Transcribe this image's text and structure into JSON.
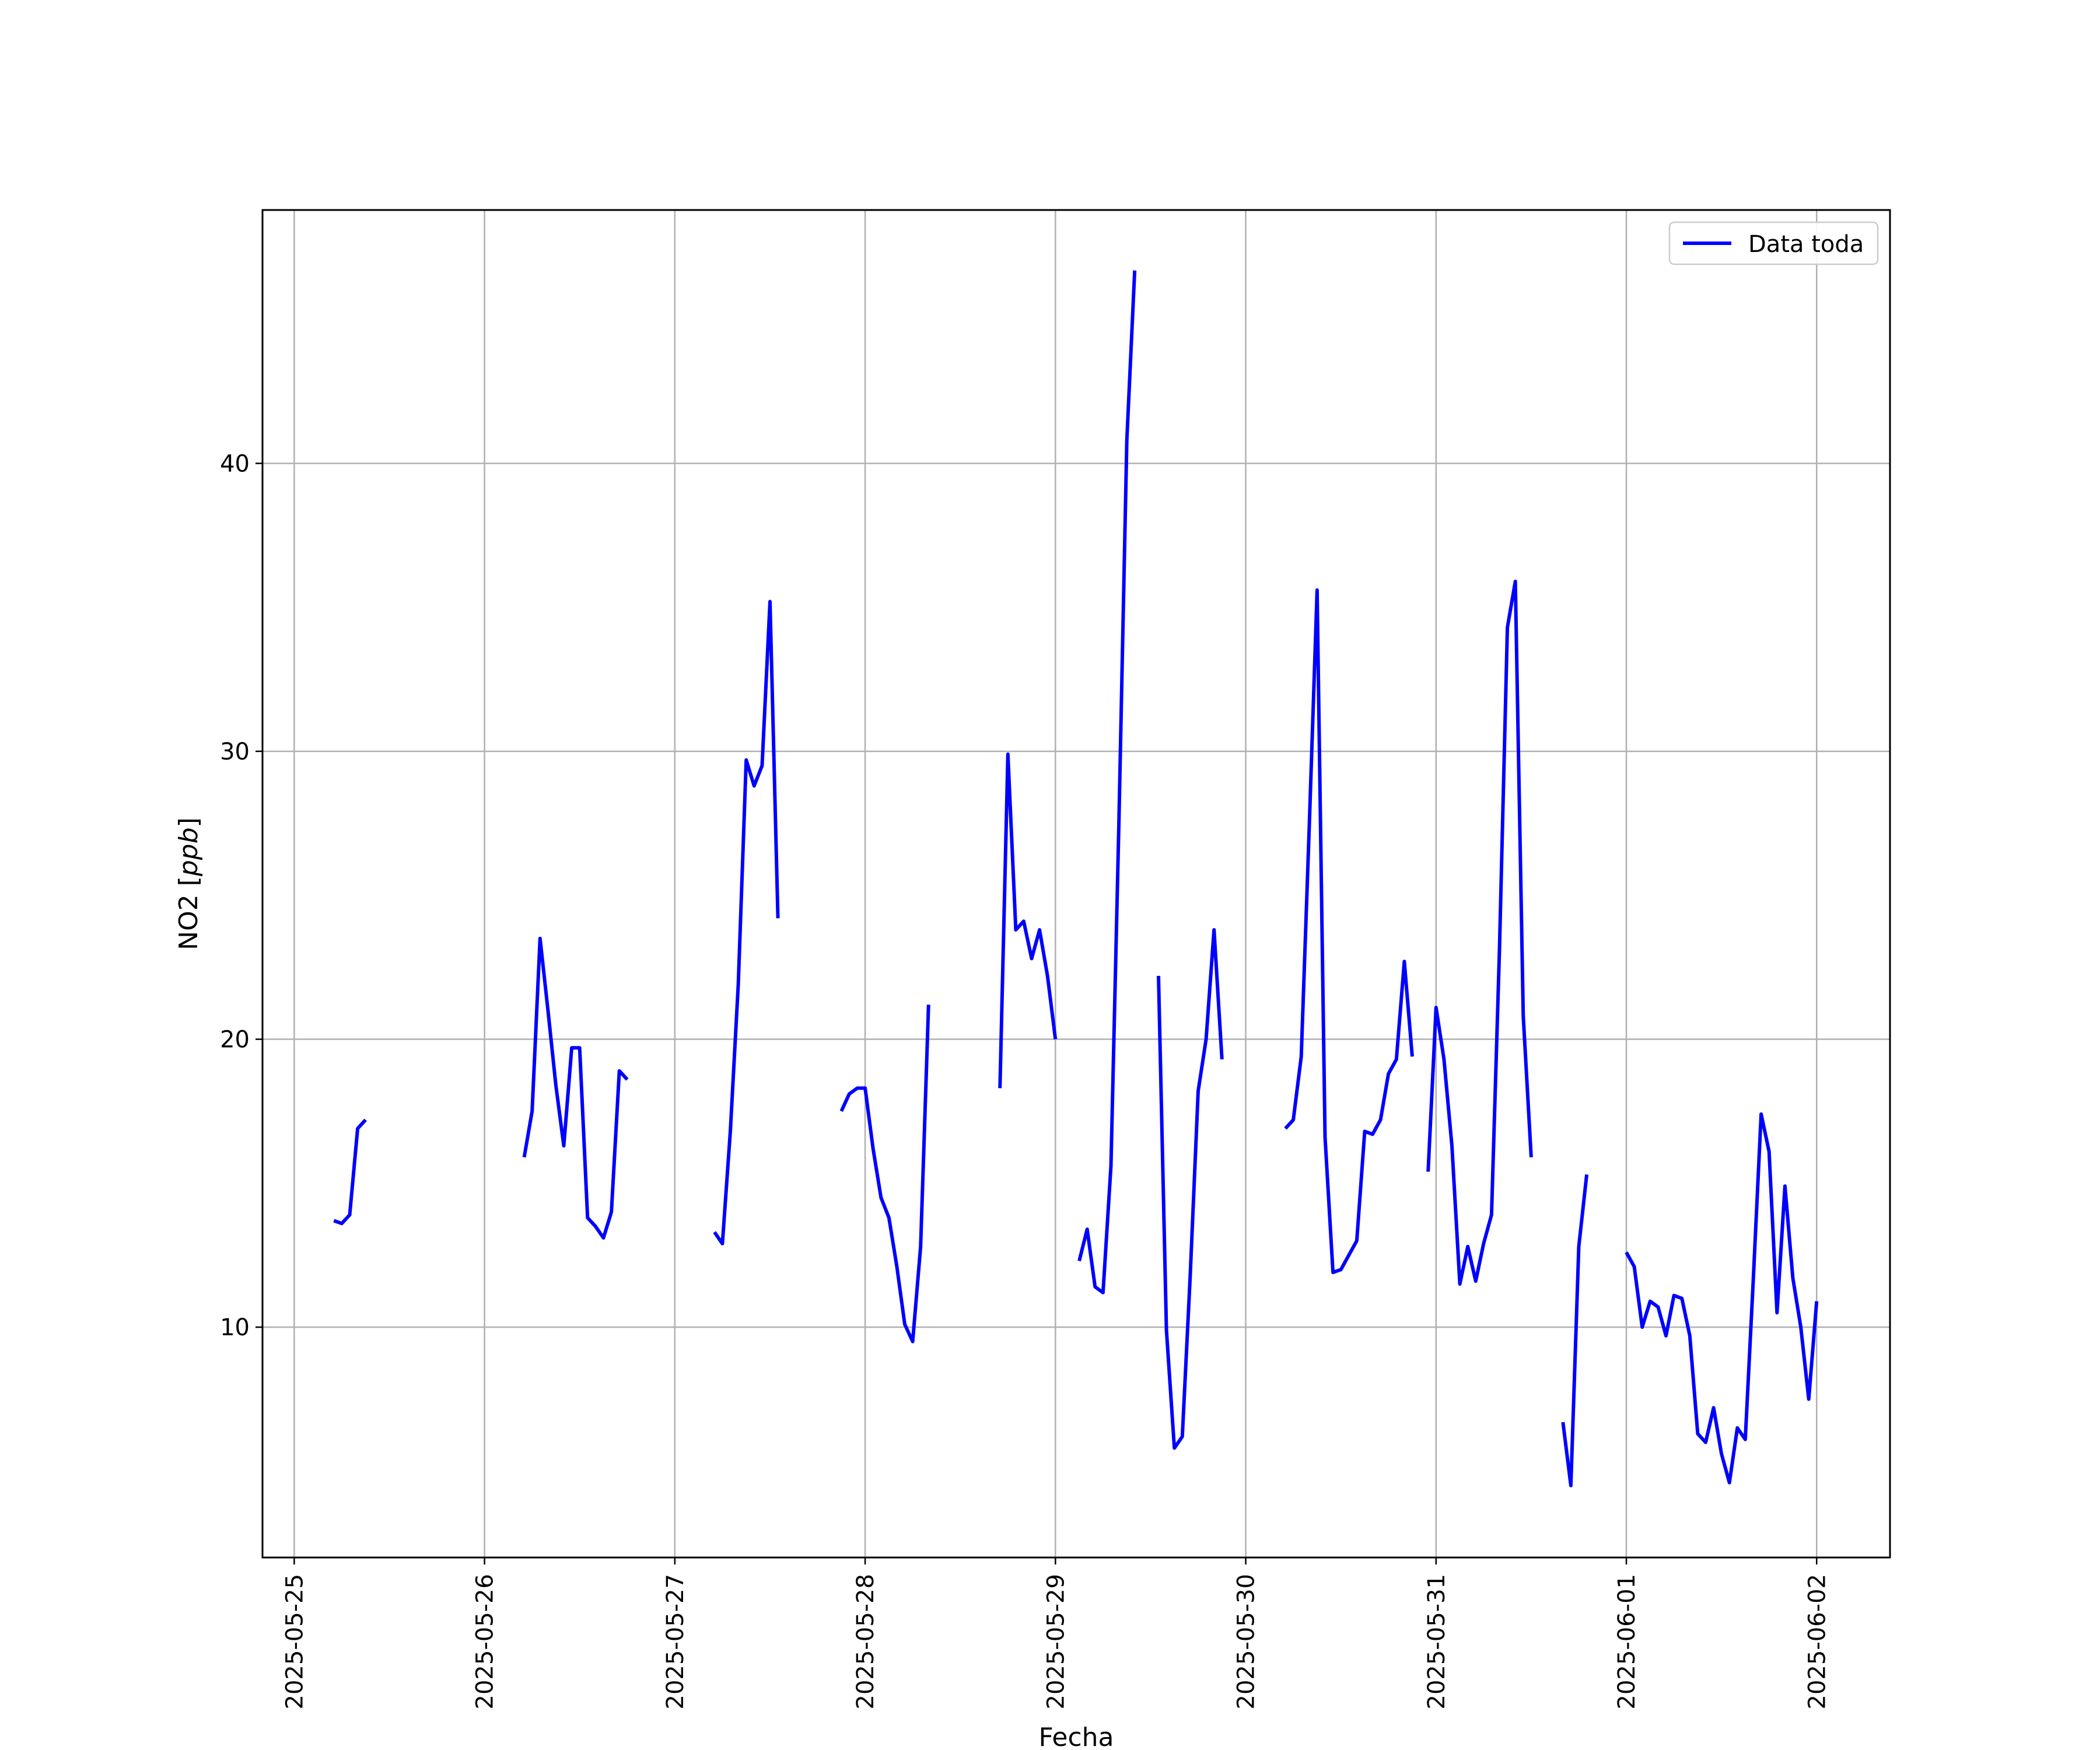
{
  "chart_data": {
    "type": "line",
    "title": "",
    "xlabel": "Fecha",
    "ylabel": "NO2 [",
    "ylabel_unit": "ppb",
    "ylabel_close": "]",
    "x_ticks": [
      "2025-05-25",
      "2025-05-26",
      "2025-05-27",
      "2025-05-28",
      "2025-05-29",
      "2025-05-30",
      "2025-05-31",
      "2025-06-01",
      "2025-06-02"
    ],
    "y_ticks": [
      10,
      20,
      30,
      40
    ],
    "xlim": [
      "2025-05-24 20:00",
      "2025-06-02 09:15"
    ],
    "ylim": [
      2.0,
      48.8
    ],
    "grid": true,
    "legend_position": "upper right",
    "colors": {
      "line": "#0000ff",
      "grid": "#b0b0b0",
      "axis": "#000000"
    },
    "series": [
      {
        "name": "Data toda",
        "segments": [
          [
            [
              "2025-05-25 05:00",
              13.7
            ],
            [
              "2025-05-25 06:00",
              13.6
            ],
            [
              "2025-05-25 07:00",
              13.9
            ],
            [
              "2025-05-25 08:00",
              16.9
            ],
            [
              "2025-05-25 09:00",
              17.2
            ]
          ],
          [
            [
              "2025-05-26 05:00",
              15.9
            ],
            [
              "2025-05-26 06:00",
              17.5
            ],
            [
              "2025-05-26 07:00",
              23.5
            ],
            [
              "2025-05-26 08:00",
              21.0
            ],
            [
              "2025-05-26 09:00",
              18.4
            ],
            [
              "2025-05-26 10:00",
              16.3
            ],
            [
              "2025-05-26 11:00",
              19.7
            ],
            [
              "2025-05-26 12:00",
              19.7
            ],
            [
              "2025-05-26 13:00",
              13.8
            ],
            [
              "2025-05-26 14:00",
              13.5
            ],
            [
              "2025-05-26 15:00",
              13.1
            ],
            [
              "2025-05-26 16:00",
              14.0
            ],
            [
              "2025-05-26 17:00",
              18.9
            ],
            [
              "2025-05-26 18:00",
              18.6
            ]
          ],
          [
            [
              "2025-05-27 05:00",
              13.3
            ],
            [
              "2025-05-27 06:00",
              12.9
            ],
            [
              "2025-05-27 07:00",
              16.8
            ],
            [
              "2025-05-27 08:00",
              21.9
            ],
            [
              "2025-05-27 09:00",
              29.7
            ],
            [
              "2025-05-27 10:00",
              28.8
            ],
            [
              "2025-05-27 11:00",
              29.5
            ],
            [
              "2025-05-27 12:00",
              35.2
            ],
            [
              "2025-05-27 13:00",
              24.2
            ]
          ],
          [
            [
              "2025-05-27 21:00",
              17.5
            ],
            [
              "2025-05-27 22:00",
              18.1
            ],
            [
              "2025-05-27 23:00",
              18.3
            ],
            [
              "2025-05-28 00:00",
              18.3
            ],
            [
              "2025-05-28 01:00",
              16.2
            ],
            [
              "2025-05-28 02:00",
              14.5
            ],
            [
              "2025-05-28 03:00",
              13.8
            ],
            [
              "2025-05-28 04:00",
              12.1
            ],
            [
              "2025-05-28 05:00",
              10.1
            ],
            [
              "2025-05-28 06:00",
              9.5
            ],
            [
              "2025-05-28 07:00",
              12.8
            ],
            [
              "2025-05-28 08:00",
              21.2
            ]
          ],
          [
            [
              "2025-05-28 17:00",
              18.3
            ],
            [
              "2025-05-28 18:00",
              29.9
            ],
            [
              "2025-05-28 19:00",
              23.8
            ],
            [
              "2025-05-28 20:00",
              24.1
            ],
            [
              "2025-05-28 21:00",
              22.8
            ],
            [
              "2025-05-28 22:00",
              23.8
            ],
            [
              "2025-05-28 23:00",
              22.2
            ],
            [
              "2025-05-29 00:00",
              20.0
            ]
          ],
          [
            [
              "2025-05-29 03:00",
              12.3
            ],
            [
              "2025-05-29 04:00",
              13.4
            ],
            [
              "2025-05-29 05:00",
              11.4
            ],
            [
              "2025-05-29 06:00",
              11.2
            ],
            [
              "2025-05-29 07:00",
              15.6
            ],
            [
              "2025-05-29 08:00",
              27.5
            ],
            [
              "2025-05-29 09:00",
              40.8
            ],
            [
              "2025-05-29 10:00",
              46.7
            ]
          ],
          [
            [
              "2025-05-29 13:00",
              22.2
            ],
            [
              "2025-05-29 14:00",
              9.9
            ],
            [
              "2025-05-29 15:00",
              5.8
            ],
            [
              "2025-05-29 16:00",
              6.2
            ],
            [
              "2025-05-29 17:00",
              11.8
            ],
            [
              "2025-05-29 18:00",
              18.2
            ],
            [
              "2025-05-29 19:00",
              20.0
            ],
            [
              "2025-05-29 20:00",
              23.8
            ],
            [
              "2025-05-29 21:00",
              19.3
            ]
          ],
          [
            [
              "2025-05-30 05:00",
              16.9
            ],
            [
              "2025-05-30 06:00",
              17.2
            ],
            [
              "2025-05-30 07:00",
              19.4
            ],
            [
              "2025-05-30 08:00",
              27.3
            ],
            [
              "2025-05-30 09:00",
              35.6
            ],
            [
              "2025-05-30 10:00",
              16.6
            ],
            [
              "2025-05-30 11:00",
              11.9
            ],
            [
              "2025-05-30 12:00",
              12.0
            ],
            [
              "2025-05-30 13:00",
              12.5
            ],
            [
              "2025-05-30 14:00",
              13.0
            ],
            [
              "2025-05-30 15:00",
              16.8
            ],
            [
              "2025-05-30 16:00",
              16.7
            ],
            [
              "2025-05-30 17:00",
              17.2
            ],
            [
              "2025-05-30 18:00",
              18.8
            ],
            [
              "2025-05-30 19:00",
              19.3
            ],
            [
              "2025-05-30 20:00",
              22.7
            ],
            [
              "2025-05-30 21:00",
              19.4
            ]
          ],
          [
            [
              "2025-05-30 23:00",
              15.4
            ],
            [
              "2025-05-31 00:00",
              21.1
            ],
            [
              "2025-05-31 01:00",
              19.3
            ],
            [
              "2025-05-31 02:00",
              16.3
            ],
            [
              "2025-05-31 03:00",
              11.5
            ],
            [
              "2025-05-31 04:00",
              12.8
            ],
            [
              "2025-05-31 05:00",
              11.6
            ],
            [
              "2025-05-31 06:00",
              12.9
            ],
            [
              "2025-05-31 07:00",
              13.9
            ],
            [
              "2025-05-31 08:00",
              23.1
            ],
            [
              "2025-05-31 09:00",
              34.3
            ],
            [
              "2025-05-31 10:00",
              35.9
            ],
            [
              "2025-05-31 11:00",
              20.8
            ],
            [
              "2025-05-31 12:00",
              15.9
            ]
          ],
          [
            [
              "2025-05-31 16:00",
              6.7
            ],
            [
              "2025-05-31 17:00",
              4.5
            ],
            [
              "2025-05-31 18:00",
              12.8
            ],
            [
              "2025-05-31 19:00",
              15.3
            ]
          ],
          [
            [
              "2025-06-01 00:00",
              12.6
            ],
            [
              "2025-06-01 01:00",
              12.1
            ],
            [
              "2025-06-01 02:00",
              10.0
            ],
            [
              "2025-06-01 03:00",
              10.9
            ],
            [
              "2025-06-01 04:00",
              10.7
            ],
            [
              "2025-06-01 05:00",
              9.7
            ],
            [
              "2025-06-01 06:00",
              11.1
            ],
            [
              "2025-06-01 07:00",
              11.0
            ],
            [
              "2025-06-01 08:00",
              9.7
            ],
            [
              "2025-06-01 09:00",
              6.3
            ],
            [
              "2025-06-01 10:00",
              6.0
            ],
            [
              "2025-06-01 11:00",
              7.2
            ],
            [
              "2025-06-01 12:00",
              5.6
            ],
            [
              "2025-06-01 13:00",
              4.6
            ],
            [
              "2025-06-01 14:00",
              6.5
            ],
            [
              "2025-06-01 15:00",
              6.1
            ],
            [
              "2025-06-01 16:00",
              11.6
            ],
            [
              "2025-06-01 17:00",
              17.4
            ],
            [
              "2025-06-01 18:00",
              16.1
            ],
            [
              "2025-06-01 19:00",
              10.5
            ],
            [
              "2025-06-01 20:00",
              14.9
            ],
            [
              "2025-06-01 21:00",
              11.7
            ],
            [
              "2025-06-01 22:00",
              10.0
            ],
            [
              "2025-06-01 23:00",
              7.5
            ],
            [
              "2025-06-02 00:00",
              10.9
            ]
          ]
        ]
      }
    ]
  }
}
